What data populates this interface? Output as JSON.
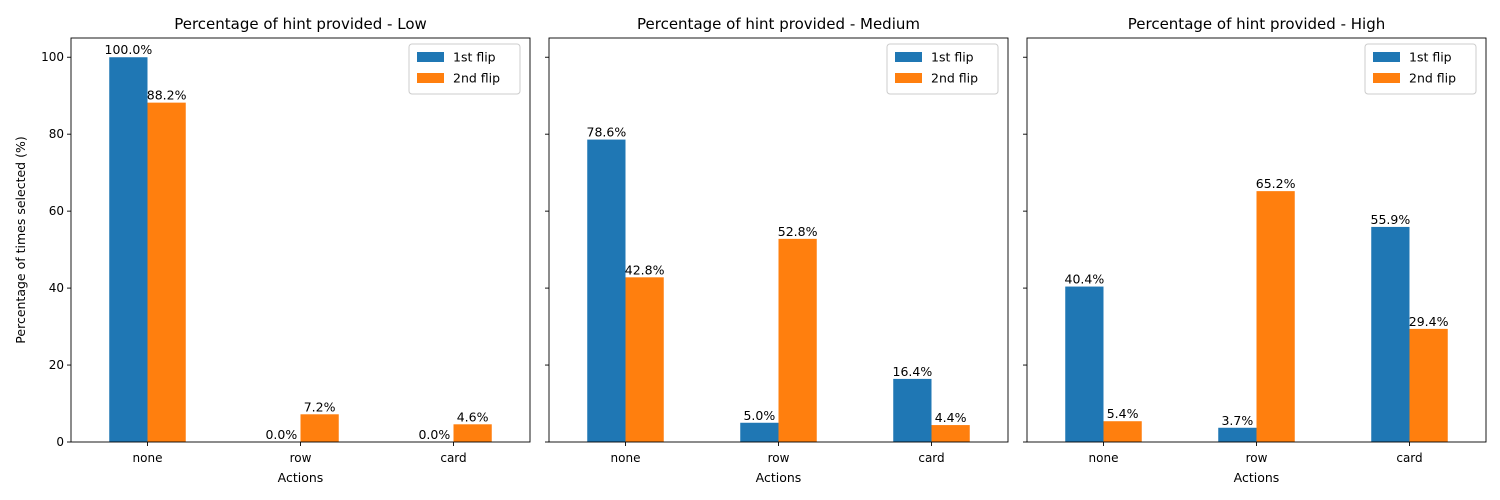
{
  "chart_data": [
    {
      "type": "bar",
      "title": "Percentage of hint provided - Low",
      "xlabel": "Actions",
      "ylabel": "Percentage of times selected (%)",
      "categories": [
        "none",
        "row",
        "card"
      ],
      "ylim": [
        0,
        105
      ],
      "yticks": [
        0,
        20,
        40,
        60,
        80,
        100
      ],
      "legend": "top-right",
      "grid": false,
      "series": [
        {
          "name": "1st flip",
          "color": "#1f77b4",
          "values": [
            100.0,
            0.0,
            0.0
          ],
          "labels": [
            "100.0%",
            "0.0%",
            "0.0%"
          ]
        },
        {
          "name": "2nd flip",
          "color": "#ff7f0e",
          "values": [
            88.2,
            7.2,
            4.6
          ],
          "labels": [
            "88.2%",
            "7.2%",
            "4.6%"
          ]
        }
      ]
    },
    {
      "type": "bar",
      "title": "Percentage of hint provided - Medium",
      "xlabel": "Actions",
      "ylabel": "",
      "categories": [
        "none",
        "row",
        "card"
      ],
      "ylim": [
        0,
        105
      ],
      "yticks": [
        0,
        20,
        40,
        60,
        80,
        100
      ],
      "legend": "top-right",
      "grid": false,
      "series": [
        {
          "name": "1st flip",
          "color": "#1f77b4",
          "values": [
            78.6,
            5.0,
            16.4
          ],
          "labels": [
            "78.6%",
            "5.0%",
            "16.4%"
          ]
        },
        {
          "name": "2nd flip",
          "color": "#ff7f0e",
          "values": [
            42.8,
            52.8,
            4.4
          ],
          "labels": [
            "42.8%",
            "52.8%",
            "4.4%"
          ]
        }
      ]
    },
    {
      "type": "bar",
      "title": "Percentage of hint provided - High",
      "xlabel": "Actions",
      "ylabel": "",
      "categories": [
        "none",
        "row",
        "card"
      ],
      "ylim": [
        0,
        105
      ],
      "yticks": [
        0,
        20,
        40,
        60,
        80,
        100
      ],
      "legend": "top-right",
      "grid": false,
      "series": [
        {
          "name": "1st flip",
          "color": "#1f77b4",
          "values": [
            40.4,
            3.7,
            55.9
          ],
          "labels": [
            "40.4%",
            "3.7%",
            "55.9%"
          ]
        },
        {
          "name": "2nd flip",
          "color": "#ff7f0e",
          "values": [
            5.4,
            65.2,
            29.4
          ],
          "labels": [
            "5.4%",
            "65.2%",
            "29.4%"
          ]
        }
      ]
    }
  ]
}
